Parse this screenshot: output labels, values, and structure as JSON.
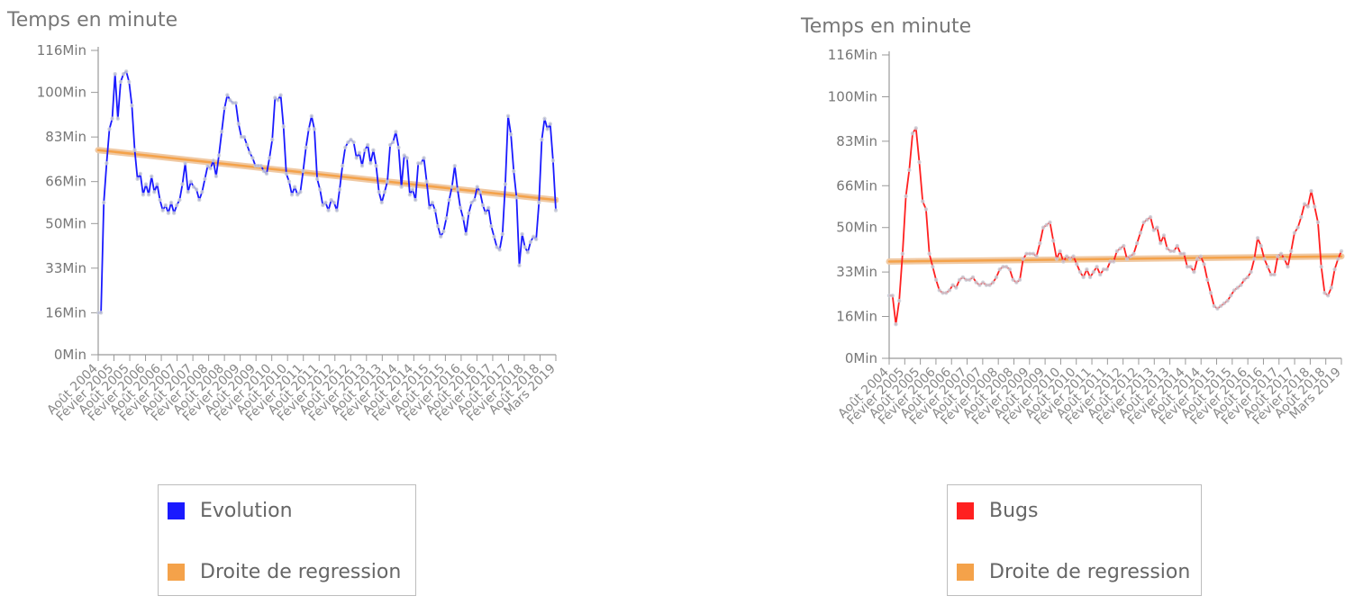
{
  "chart_data": [
    {
      "type": "line",
      "ylabel": "Temps en minute",
      "ylim": [
        0,
        116
      ],
      "yticks": [
        0,
        16,
        33,
        50,
        66,
        83,
        100,
        116
      ],
      "ytick_labels": [
        "0Min",
        "16Min",
        "33Min",
        "50Min",
        "66Min",
        "83Min",
        "100Min",
        "116Min"
      ],
      "x_labels": [
        "Août 2004",
        "Févier 2005",
        "Août 2005",
        "Févier 2006",
        "Août 2006",
        "Févier 2007",
        "Août 2007",
        "Févier 2008",
        "Août 2008",
        "Févier 2009",
        "Août 2009",
        "Févier 2010",
        "Août 2010",
        "Févier 2011",
        "Août 2011",
        "Févier 2012",
        "Août 2012",
        "Févier 2013",
        "Août 2013",
        "Févier 2014",
        "Août 2014",
        "Févier 2015",
        "Août 2015",
        "Févier 2016",
        "Août 2016",
        "Févier 2017",
        "Août 2017",
        "Févier 2018",
        "Août 2018",
        "Mars 2019"
      ],
      "series": [
        {
          "name": "Evolution",
          "color": "#1a1aff",
          "values": [
            16,
            16,
            58,
            73,
            86,
            90,
            107,
            90,
            104,
            107,
            108,
            104,
            95,
            78,
            67,
            69,
            61,
            65,
            61,
            68,
            62,
            65,
            59,
            55,
            57,
            54,
            58,
            54,
            57,
            59,
            65,
            73,
            62,
            66,
            64,
            63,
            59,
            62,
            67,
            72,
            71,
            74,
            68,
            76,
            85,
            94,
            99,
            97,
            96,
            96,
            88,
            83,
            83,
            80,
            77,
            75,
            72,
            72,
            72,
            70,
            69,
            75,
            82,
            98,
            97,
            99,
            87,
            69,
            66,
            61,
            64,
            61,
            62,
            70,
            79,
            86,
            91,
            86,
            67,
            63,
            57,
            58,
            55,
            59,
            58,
            55,
            63,
            72,
            79,
            81,
            82,
            81,
            75,
            77,
            72,
            78,
            80,
            73,
            78,
            72,
            62,
            58,
            62,
            66,
            80,
            81,
            85,
            79,
            64,
            76,
            75,
            61,
            63,
            59,
            73,
            73,
            75,
            66,
            56,
            58,
            55,
            49,
            45,
            47,
            52,
            59,
            64,
            72,
            63,
            56,
            52,
            46,
            54,
            58,
            59,
            64,
            62,
            57,
            54,
            56,
            49,
            45,
            41,
            40,
            46,
            65,
            91,
            84,
            70,
            60,
            34,
            46,
            41,
            39,
            43,
            45,
            44,
            58,
            82,
            90,
            86,
            88,
            74,
            55
          ]
        },
        {
          "name": "Droite de regression",
          "color": "#f4a24a",
          "values": [
            78,
            59
          ]
        }
      ]
    },
    {
      "type": "line",
      "ylabel": "Temps en minute",
      "ylim": [
        0,
        116
      ],
      "yticks": [
        0,
        16,
        33,
        50,
        66,
        83,
        100,
        116
      ],
      "ytick_labels": [
        "0Min",
        "16Min",
        "33Min",
        "50Min",
        "66Min",
        "83Min",
        "100Min",
        "116Min"
      ],
      "x_labels": [
        "Août 2004",
        "Févier 2005",
        "Août 2005",
        "Févier 2006",
        "Août 2006",
        "Févier 2007",
        "Août 2007",
        "Févier 2008",
        "Août 2008",
        "Févier 2009",
        "Août 2009",
        "Févier 2010",
        "Août 2010",
        "Févier 2011",
        "Août 2011",
        "Févier 2012",
        "Août 2012",
        "Févier 2013",
        "Août 2013",
        "Févier 2014",
        "Août 2014",
        "Févier 2015",
        "Août 2015",
        "Févier 2016",
        "Août 2016",
        "Févier 2017",
        "Août 2017",
        "Févier 2018",
        "Août 2018",
        "Mars 2019"
      ],
      "series": [
        {
          "name": "Bugs",
          "color": "#ff2020",
          "values": [
            24,
            24,
            13,
            22,
            40,
            62,
            72,
            86,
            88,
            75,
            60,
            57,
            40,
            35,
            30,
            26,
            25,
            25,
            26,
            28,
            27,
            30,
            31,
            30,
            30,
            31,
            29,
            28,
            29,
            28,
            28,
            29,
            31,
            34,
            35,
            35,
            34,
            30,
            29,
            30,
            38,
            40,
            40,
            40,
            39,
            44,
            50,
            51,
            52,
            45,
            38,
            41,
            37,
            39,
            38,
            39,
            36,
            33,
            31,
            34,
            31,
            33,
            35,
            32,
            34,
            34,
            37,
            37,
            41,
            42,
            43,
            38,
            39,
            40,
            44,
            48,
            52,
            53,
            54,
            49,
            50,
            44,
            47,
            42,
            41,
            41,
            43,
            40,
            40,
            35,
            35,
            33,
            38,
            39,
            36,
            30,
            25,
            20,
            19,
            20,
            21,
            22,
            24,
            26,
            27,
            28,
            30,
            31,
            33,
            38,
            46,
            43,
            38,
            35,
            32,
            32,
            39,
            40,
            38,
            35,
            41,
            48,
            50,
            54,
            59,
            58,
            64,
            58,
            52,
            35,
            25,
            24,
            27,
            34,
            38,
            41
          ]
        },
        {
          "name": "Droite de regression",
          "color": "#f4a24a",
          "values": [
            37,
            39
          ]
        }
      ]
    }
  ]
}
